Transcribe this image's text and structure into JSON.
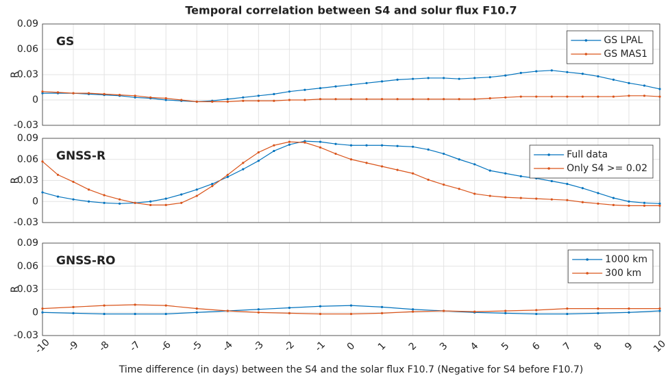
{
  "chart_data": [
    {
      "type": "line",
      "title": "Temporal correlation between S4 and solur flux F10.7",
      "annotation": "GS",
      "ylabel": "R",
      "x": [
        -10,
        -9.5,
        -9,
        -8.5,
        -8,
        -7.5,
        -7,
        -6.5,
        -6,
        -5.5,
        -5,
        -4.5,
        -4,
        -3.5,
        -3,
        -2.5,
        -2,
        -1.5,
        -1,
        -0.5,
        0,
        0.5,
        1,
        1.5,
        2,
        2.5,
        3,
        3.5,
        4,
        4.5,
        5,
        5.5,
        6,
        6.5,
        7,
        7.5,
        8,
        8.5,
        9,
        9.5,
        10
      ],
      "series": [
        {
          "name": "GS LPAL",
          "color": "#0072bd",
          "values": [
            0.008,
            0.008,
            0.008,
            0.007,
            0.006,
            0.005,
            0.003,
            0.002,
            0.0,
            -0.001,
            -0.002,
            -0.001,
            0.001,
            0.003,
            0.005,
            0.007,
            0.01,
            0.012,
            0.014,
            0.016,
            0.018,
            0.02,
            0.022,
            0.024,
            0.025,
            0.026,
            0.026,
            0.025,
            0.026,
            0.027,
            0.029,
            0.032,
            0.034,
            0.035,
            0.033,
            0.031,
            0.028,
            0.024,
            0.02,
            0.017,
            0.013
          ]
        },
        {
          "name": "GS MAS1",
          "color": "#d95319",
          "values": [
            0.01,
            0.009,
            0.008,
            0.008,
            0.007,
            0.006,
            0.005,
            0.003,
            0.002,
            0.0,
            -0.002,
            -0.002,
            -0.002,
            -0.001,
            -0.001,
            -0.001,
            0.0,
            0.0,
            0.001,
            0.001,
            0.001,
            0.001,
            0.001,
            0.001,
            0.001,
            0.001,
            0.001,
            0.001,
            0.001,
            0.002,
            0.003,
            0.004,
            0.004,
            0.004,
            0.004,
            0.004,
            0.004,
            0.004,
            0.005,
            0.005,
            0.004
          ]
        }
      ],
      "xlim": [
        -10,
        10
      ],
      "ylim": [
        -0.03,
        0.09
      ],
      "yticks": [
        -0.03,
        0,
        0.03,
        0.06,
        0.09
      ],
      "xticks": [
        -10,
        -9,
        -8,
        -7,
        -6,
        -5,
        -4,
        -3,
        -2,
        -1,
        0,
        1,
        2,
        3,
        4,
        5,
        6,
        7,
        8,
        9,
        10
      ],
      "grid": true,
      "legend": "upper right"
    },
    {
      "type": "line",
      "annotation": "GNSS-R",
      "ylabel": "R",
      "x": [
        -10,
        -9.5,
        -9,
        -8.5,
        -8,
        -7.5,
        -7,
        -6.5,
        -6,
        -5.5,
        -5,
        -4.5,
        -4,
        -3.5,
        -3,
        -2.5,
        -2,
        -1.5,
        -1,
        -0.5,
        0,
        0.5,
        1,
        1.5,
        2,
        2.5,
        3,
        3.5,
        4,
        4.5,
        5,
        5.5,
        6,
        6.5,
        7,
        7.5,
        8,
        8.5,
        9,
        9.5,
        10
      ],
      "series": [
        {
          "name": "Full data",
          "color": "#0072bd",
          "values": [
            0.013,
            0.007,
            0.003,
            0.0,
            -0.002,
            -0.003,
            -0.002,
            0.0,
            0.004,
            0.01,
            0.017,
            0.025,
            0.035,
            0.046,
            0.058,
            0.072,
            0.081,
            0.086,
            0.085,
            0.082,
            0.08,
            0.08,
            0.08,
            0.079,
            0.078,
            0.074,
            0.068,
            0.06,
            0.053,
            0.044,
            0.04,
            0.036,
            0.033,
            0.029,
            0.025,
            0.019,
            0.012,
            0.005,
            0.0,
            -0.002,
            -0.003
          ]
        },
        {
          "name": "Only S4 >= 0.02",
          "color": "#d95319",
          "values": [
            0.057,
            0.038,
            0.028,
            0.017,
            0.009,
            0.003,
            -0.002,
            -0.005,
            -0.005,
            -0.002,
            0.008,
            0.022,
            0.038,
            0.055,
            0.07,
            0.08,
            0.085,
            0.084,
            0.077,
            0.068,
            0.06,
            0.055,
            0.05,
            0.045,
            0.04,
            0.031,
            0.024,
            0.018,
            0.011,
            0.008,
            0.006,
            0.005,
            0.004,
            0.003,
            0.002,
            -0.001,
            -0.003,
            -0.005,
            -0.006,
            -0.006,
            -0.006
          ]
        }
      ],
      "xlim": [
        -10,
        10
      ],
      "ylim": [
        -0.03,
        0.09
      ],
      "yticks": [
        -0.03,
        0,
        0.03,
        0.06,
        0.09
      ],
      "xticks": [
        -10,
        -9,
        -8,
        -7,
        -6,
        -5,
        -4,
        -3,
        -2,
        -1,
        0,
        1,
        2,
        3,
        4,
        5,
        6,
        7,
        8,
        9,
        10
      ],
      "grid": true,
      "legend": "upper right"
    },
    {
      "type": "line",
      "annotation": "GNSS-RO",
      "ylabel": "R",
      "xlabel": "Time difference (in days) between the S4 and the solar flux F10.7 (Negative for S4 before F10.7)",
      "x": [
        -10,
        -9,
        -8,
        -7,
        -6,
        -5,
        -4,
        -3,
        -2,
        -1,
        0,
        1,
        2,
        3,
        4,
        5,
        6,
        7,
        8,
        9,
        10
      ],
      "series": [
        {
          "name": "1000 km",
          "color": "#0072bd",
          "values": [
            0.0,
            -0.001,
            -0.002,
            -0.002,
            -0.002,
            0.0,
            0.002,
            0.004,
            0.006,
            0.008,
            0.009,
            0.007,
            0.004,
            0.002,
            0.0,
            -0.001,
            -0.002,
            -0.002,
            -0.001,
            0.0,
            0.002
          ]
        },
        {
          "name": "300 km",
          "color": "#d95319",
          "values": [
            0.005,
            0.007,
            0.009,
            0.01,
            0.009,
            0.005,
            0.002,
            0.0,
            -0.001,
            -0.002,
            -0.002,
            -0.001,
            0.001,
            0.002,
            0.001,
            0.002,
            0.003,
            0.005,
            0.005,
            0.005,
            0.005
          ]
        }
      ],
      "xlim": [
        -10,
        10
      ],
      "ylim": [
        -0.03,
        0.09
      ],
      "yticks": [
        -0.03,
        0,
        0.03,
        0.06,
        0.09
      ],
      "xticks": [
        -10,
        -9,
        -8,
        -7,
        -6,
        -5,
        -4,
        -3,
        -2,
        -1,
        0,
        1,
        2,
        3,
        4,
        5,
        6,
        7,
        8,
        9,
        10
      ],
      "grid": true,
      "legend": "upper right"
    }
  ]
}
